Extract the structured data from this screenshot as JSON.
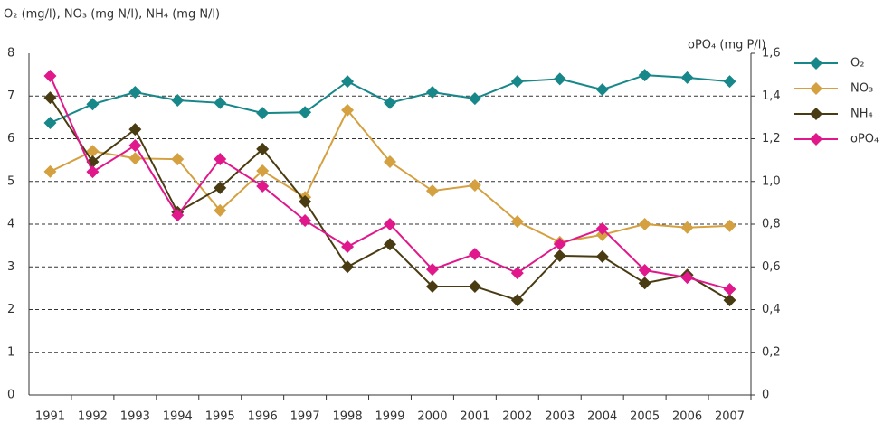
{
  "chart_data": {
    "type": "line",
    "y_label": "O₂ (mg/l), NO₃ (mg N/l), NH₄ (mg N/l)",
    "y2_label": "oPO₄ (mg P/l)",
    "categories": [
      "1991",
      "1992",
      "1993",
      "1994",
      "1995",
      "1996",
      "1997",
      "1998",
      "1999",
      "2000",
      "2001",
      "2002",
      "2003",
      "2004",
      "2005",
      "2006",
      "2007"
    ],
    "series": [
      {
        "name": "O₂",
        "color": "#17878a",
        "values": [
          6.37,
          6.81,
          7.09,
          6.9,
          6.84,
          6.6,
          6.62,
          7.34,
          6.84,
          7.09,
          6.94,
          7.34,
          7.4,
          7.15,
          7.49,
          7.43,
          7.34
        ]
      },
      {
        "name": "NO₃",
        "color": "#d4a040",
        "values": [
          5.23,
          5.71,
          5.54,
          5.52,
          4.32,
          5.25,
          4.63,
          6.67,
          5.46,
          4.78,
          4.91,
          4.06,
          3.58,
          3.75,
          4.0,
          3.92,
          3.96
        ]
      },
      {
        "name": "NH₄",
        "color": "#4a3c12",
        "values": [
          6.96,
          5.46,
          6.22,
          4.28,
          4.85,
          5.76,
          4.53,
          3.0,
          3.53,
          2.54,
          2.54,
          2.22,
          3.26,
          3.24,
          2.62,
          2.81,
          2.22
        ]
      },
      {
        "name": "oPO₄",
        "color": "#e0188c",
        "axis": "y2",
        "values": [
          1.494,
          1.045,
          1.168,
          0.842,
          1.105,
          0.978,
          0.817,
          0.694,
          0.8,
          0.588,
          0.66,
          0.571,
          0.707,
          0.779,
          0.584,
          0.55,
          0.495
        ]
      }
    ],
    "ylim": [
      0,
      8
    ],
    "yticks": [
      0,
      1,
      2,
      3,
      4,
      5,
      6,
      7,
      8
    ],
    "y2lim": [
      0,
      1.6
    ],
    "y2ticks": [
      0,
      {
        "value": 0.2,
        "label": "0,2"
      },
      {
        "value": 0.4,
        "label": "0,4"
      },
      {
        "value": 0.6,
        "label": "0,6"
      },
      {
        "value": 0.8,
        "label": "0,8"
      },
      {
        "value": 1.0,
        "label": "1,0"
      },
      {
        "value": 1.2,
        "label": "1,2"
      },
      {
        "value": 1.4,
        "label": "1,4"
      },
      {
        "value": 1.6,
        "label": "1,6"
      }
    ],
    "grid": true,
    "legend": "right"
  }
}
